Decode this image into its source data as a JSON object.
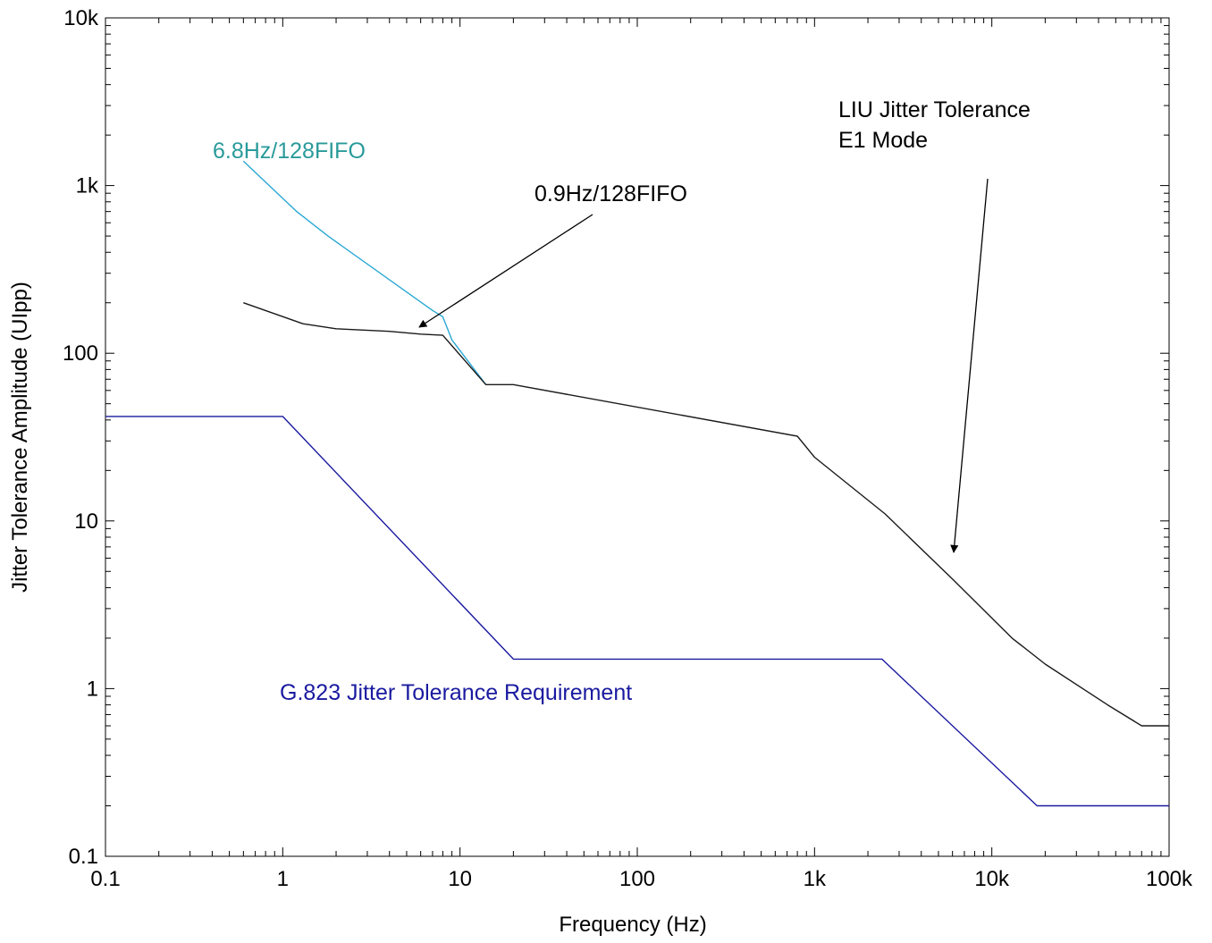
{
  "chart_data": {
    "type": "line",
    "title": "",
    "xlabel": "Frequency (Hz)",
    "ylabel": "Jitter Tolerance Amplitude (UIpp)",
    "xscale": "log",
    "yscale": "log",
    "xlim": [
      0.1,
      100000
    ],
    "ylim": [
      0.1,
      10000
    ],
    "grid": false,
    "x_ticks": [
      {
        "value": 0.1,
        "label": "0.1"
      },
      {
        "value": 1,
        "label": "1"
      },
      {
        "value": 10,
        "label": "10"
      },
      {
        "value": 100,
        "label": "100"
      },
      {
        "value": 1000,
        "label": "1k"
      },
      {
        "value": 10000,
        "label": "10k"
      },
      {
        "value": 100000,
        "label": "100k"
      }
    ],
    "y_ticks": [
      {
        "value": 0.1,
        "label": "0.1"
      },
      {
        "value": 1,
        "label": "1"
      },
      {
        "value": 10,
        "label": "10"
      },
      {
        "value": 100,
        "label": "100"
      },
      {
        "value": 1000,
        "label": "1k"
      },
      {
        "value": 10000,
        "label": "10k"
      }
    ],
    "series": [
      {
        "name": "G.823 Jitter Tolerance Requirement",
        "color": "#1a1aa0",
        "points": [
          [
            0.1,
            42
          ],
          [
            1,
            42
          ],
          [
            20,
            1.5
          ],
          [
            2400,
            1.5
          ],
          [
            18000,
            0.2
          ],
          [
            100000,
            0.2
          ]
        ]
      },
      {
        "name": "6.8Hz/128FIFO",
        "color": "#2aa8d4",
        "points": [
          [
            0.6,
            1400
          ],
          [
            1.2,
            700
          ],
          [
            1.8,
            500
          ],
          [
            7,
            180
          ],
          [
            8,
            165
          ],
          [
            9,
            120
          ],
          [
            14,
            65
          ]
        ]
      },
      {
        "name": "0.9Hz/128FIFO",
        "color": "#1a1a1a",
        "points": [
          [
            0.6,
            200
          ],
          [
            1.3,
            150
          ],
          [
            2,
            140
          ],
          [
            4,
            135
          ],
          [
            6,
            130
          ],
          [
            8,
            128
          ],
          [
            14,
            65
          ],
          [
            20,
            65
          ],
          [
            800,
            32
          ],
          [
            1000,
            24
          ],
          [
            2500,
            11
          ],
          [
            6000,
            4.5
          ],
          [
            13000,
            2
          ],
          [
            20000,
            1.4
          ],
          [
            45000,
            0.8
          ],
          [
            70000,
            0.6
          ],
          [
            100000,
            0.6
          ]
        ]
      }
    ],
    "annotations": [
      {
        "text": "6.8Hz/128FIFO",
        "color": "#2a9a9a"
      },
      {
        "text": "0.9Hz/128FIFO",
        "color": "#000000"
      },
      {
        "text": "LIU Jitter Tolerance",
        "color": "#000000"
      },
      {
        "text": "E1 Mode",
        "color": "#000000"
      },
      {
        "text": "G.823 Jitter Tolerance Requirement",
        "color": "#1a1aa0"
      }
    ]
  }
}
